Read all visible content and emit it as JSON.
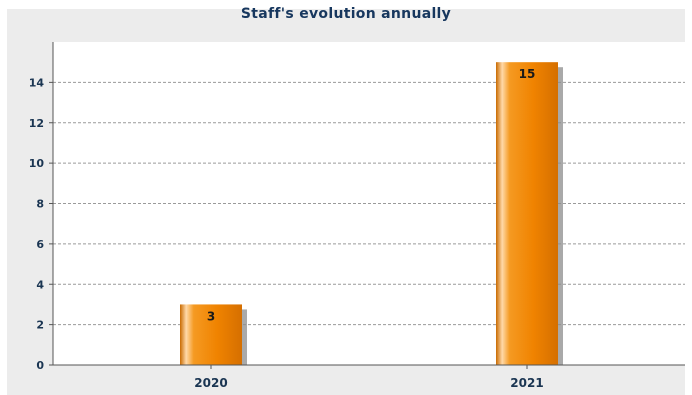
{
  "chart_data": {
    "type": "bar",
    "title": "Staff's evolution annually",
    "xlabel": "",
    "ylabel": "",
    "categories": [
      "2020",
      "2021"
    ],
    "values": [
      3,
      15
    ],
    "ylim": [
      0,
      16
    ],
    "yticks": [
      0,
      2,
      4,
      6,
      8,
      10,
      12,
      14
    ],
    "grid": true,
    "bar_color": "#f28c00"
  }
}
